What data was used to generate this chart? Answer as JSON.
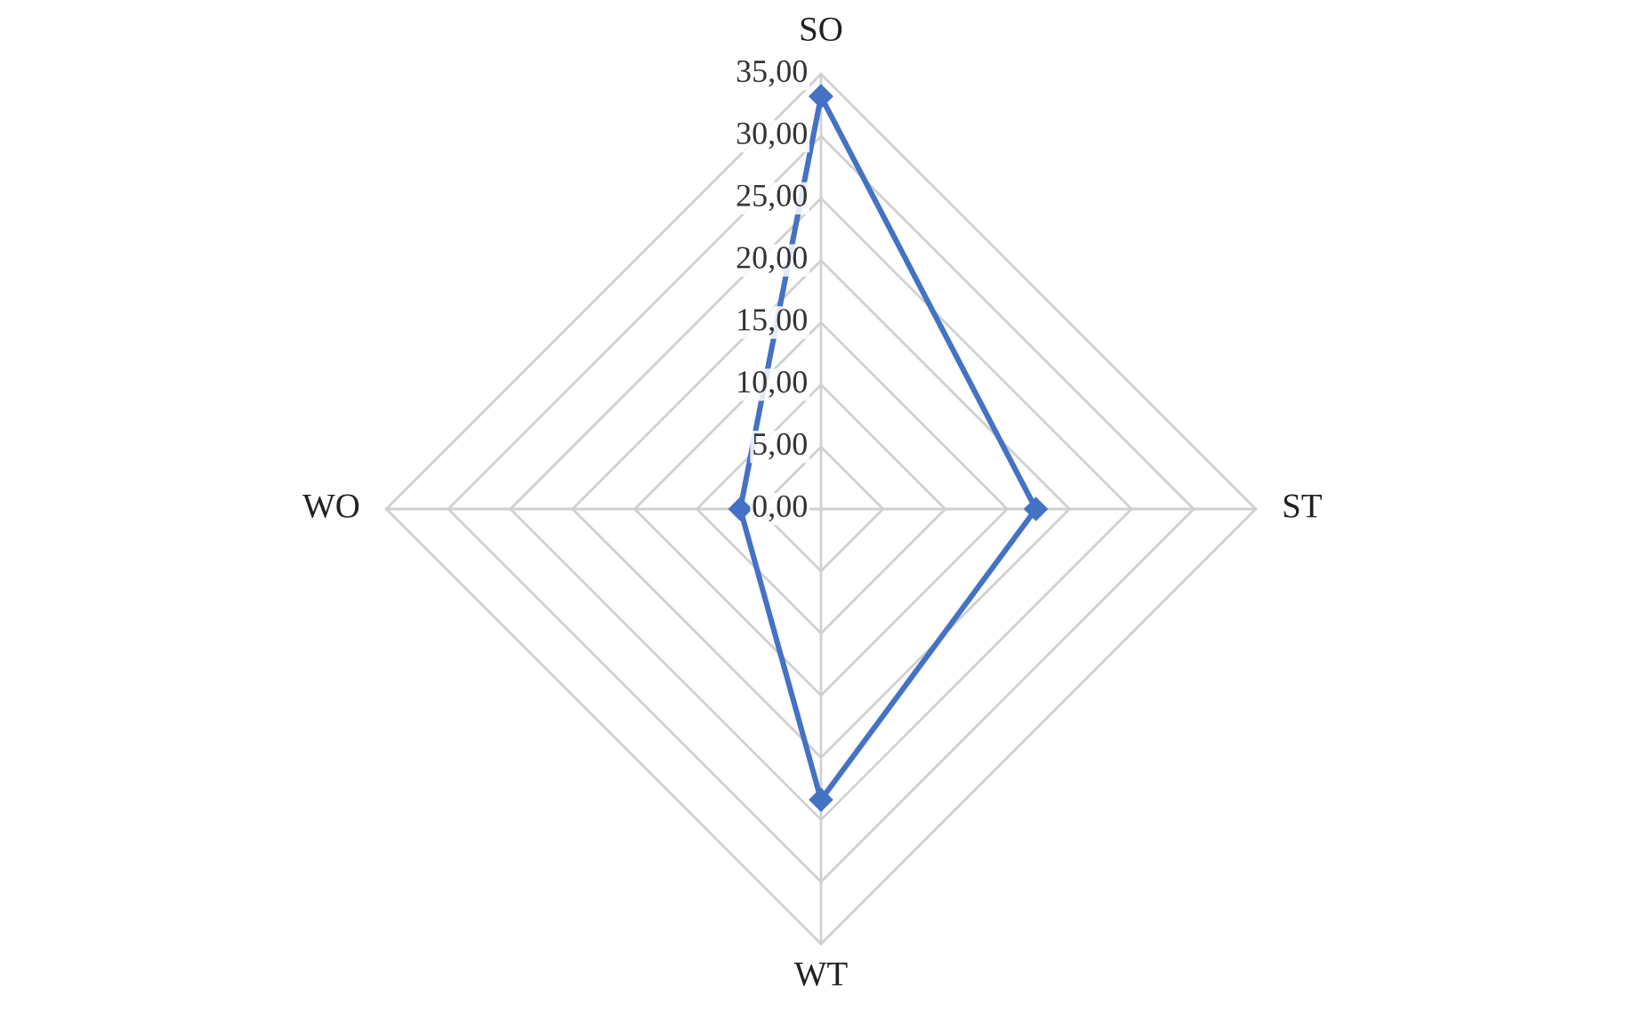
{
  "chart_data": {
    "type": "radar",
    "categories": [
      "SO",
      "ST",
      "WT",
      "WO"
    ],
    "series": [
      {
        "color": "#4472c4",
        "values": [
          33.2,
          17.3,
          23.4,
          6.5
        ]
      }
    ],
    "ylim": [
      0,
      35
    ],
    "yticks": [
      {
        "value": 0,
        "label": "0,00"
      },
      {
        "value": 5,
        "label": "5,00"
      },
      {
        "value": 10,
        "label": "10,00"
      },
      {
        "value": 15,
        "label": "15,00"
      },
      {
        "value": 20,
        "label": "20,00"
      },
      {
        "value": 25,
        "label": "25,00"
      },
      {
        "value": 30,
        "label": "30,00"
      },
      {
        "value": 35,
        "label": "35,00"
      }
    ],
    "grid": true,
    "marker": "diamond",
    "line_style": "solid"
  }
}
